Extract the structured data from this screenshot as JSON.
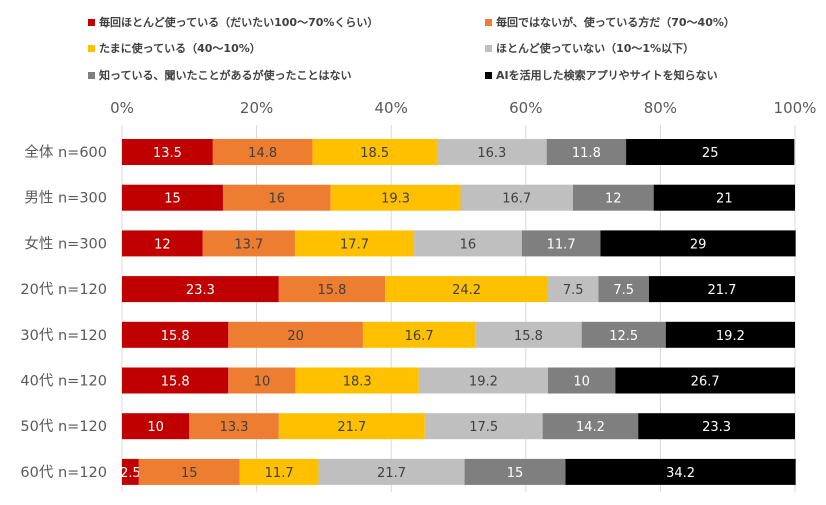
{
  "chart_data": {
    "type": "bar",
    "orientation": "horizontal",
    "stacked": "percent",
    "categories": [
      "全体 n=600",
      "男性 n=300",
      "女性 n=300",
      "20代 n=120",
      "30代 n=120",
      "40代 n=120",
      "50代 n=120",
      "60代 n=120"
    ],
    "series": [
      {
        "name": "毎回ほとんど使っている（だいたい100～70%くらい）",
        "color": "#C00000",
        "label_color": "#ffffff",
        "values": [
          13.5,
          15,
          12,
          23.3,
          15.8,
          15.8,
          10,
          2.5
        ]
      },
      {
        "name": "毎回ではないが、使っている方だ（70～40%）",
        "color": "#ED7D31",
        "label_color": "#404040",
        "values": [
          14.8,
          16,
          13.7,
          15.8,
          20,
          10,
          13.3,
          15
        ]
      },
      {
        "name": "たまに使っている（40～10%）",
        "color": "#FFC000",
        "label_color": "#404040",
        "values": [
          18.5,
          19.3,
          17.7,
          24.2,
          16.7,
          18.3,
          21.7,
          11.7
        ]
      },
      {
        "name": "ほとんど使っていない（10～1%以下）",
        "color": "#BFBFBF",
        "label_color": "#404040",
        "values": [
          16.3,
          16.7,
          16,
          7.5,
          15.8,
          19.2,
          17.5,
          21.7
        ]
      },
      {
        "name": "知っている、聞いたことがあるが使ったことはない",
        "color": "#7F7F7F",
        "label_color": "#ffffff",
        "values": [
          11.8,
          12,
          11.7,
          7.5,
          12.5,
          10,
          14.2,
          15
        ]
      },
      {
        "name": "AIを活用した検索アプリやサイトを知らない",
        "color": "#000000",
        "label_color": "#ffffff",
        "values": [
          25,
          21,
          29,
          21.7,
          19.2,
          26.7,
          23.3,
          34.2
        ]
      }
    ],
    "x_ticks": [
      "0%",
      "20%",
      "40%",
      "60%",
      "80%",
      "100%"
    ],
    "xlim": [
      0,
      100
    ],
    "grid": true,
    "legend_position": "top"
  }
}
